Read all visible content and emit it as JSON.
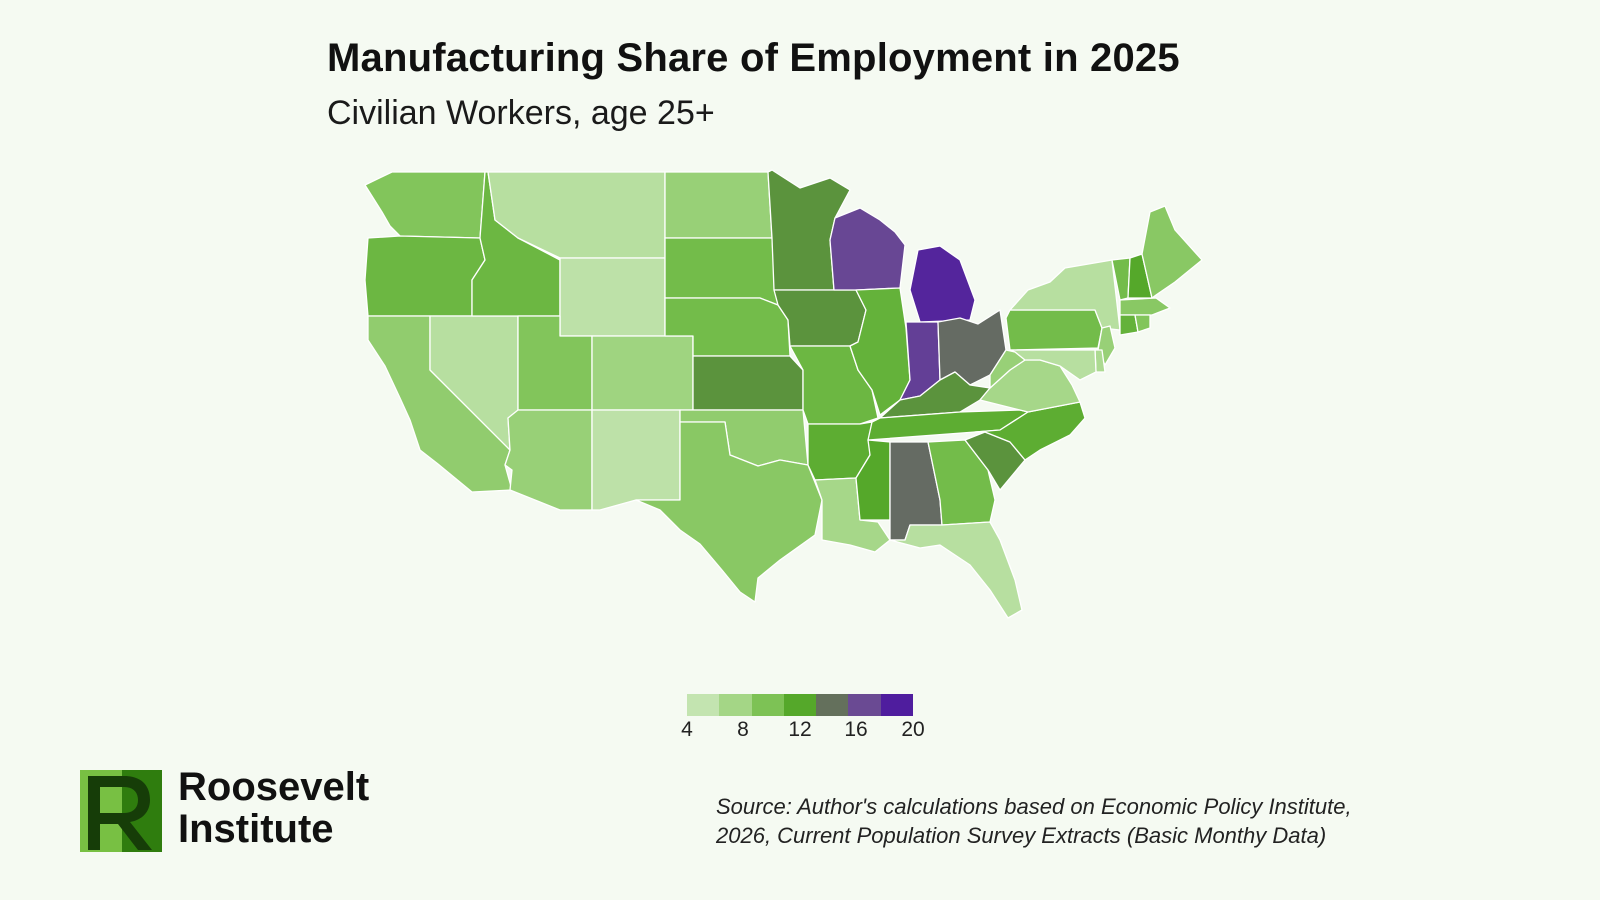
{
  "header": {
    "title": "Manufacturing Share of Employment in 2025",
    "subtitle": "Civilian Workers, age 25+"
  },
  "legend": {
    "ticks": [
      "4",
      "8",
      "12",
      "16",
      "20"
    ],
    "range": [
      4,
      20
    ],
    "colors": [
      "#c3e4b0",
      "#a4d686",
      "#7dc255",
      "#55a82a",
      "#64705c",
      "#6a4a93",
      "#4f1d9e"
    ]
  },
  "logo": {
    "name": "Roosevelt Institute",
    "line1": "Roosevelt",
    "line2": "Institute",
    "colors": {
      "dark": "#2f7d0e",
      "light": "#78c043",
      "mark": "#163d08"
    }
  },
  "source": {
    "line1": "Source: Author's calculations based on Economic Policy Institute,",
    "line2": "2026, Current Population Survey Extracts (Basic Monthy Data)"
  },
  "map_data": {
    "type": "choropleth",
    "region": "contiguous United States",
    "metric": "manufacturing share of employment (%)",
    "states": [
      {
        "id": "WA",
        "value": 9
      },
      {
        "id": "OR",
        "value": 10.5
      },
      {
        "id": "CA",
        "value": 8
      },
      {
        "id": "NV",
        "value": 5
      },
      {
        "id": "ID",
        "value": 10.5
      },
      {
        "id": "MT",
        "value": 5
      },
      {
        "id": "WY",
        "value": 4.5
      },
      {
        "id": "UT",
        "value": 9
      },
      {
        "id": "AZ",
        "value": 7.5
      },
      {
        "id": "CO",
        "value": 7
      },
      {
        "id": "NM",
        "value": 4.5
      },
      {
        "id": "ND",
        "value": 7.5
      },
      {
        "id": "SD",
        "value": 10
      },
      {
        "id": "NE",
        "value": 10
      },
      {
        "id": "KS",
        "value": 13
      },
      {
        "id": "OK",
        "value": 8
      },
      {
        "id": "TX",
        "value": 8.5
      },
      {
        "id": "MN",
        "value": 13
      },
      {
        "id": "IA",
        "value": 13
      },
      {
        "id": "MO",
        "value": 10.5
      },
      {
        "id": "AR",
        "value": 11.5
      },
      {
        "id": "LA",
        "value": 6.5
      },
      {
        "id": "WI",
        "value": 17.5
      },
      {
        "id": "IL",
        "value": 11
      },
      {
        "id": "MI",
        "value": 19.5
      },
      {
        "id": "IN",
        "value": 18
      },
      {
        "id": "OH",
        "value": 15
      },
      {
        "id": "KY",
        "value": 13
      },
      {
        "id": "TN",
        "value": 11.5
      },
      {
        "id": "MS",
        "value": 12
      },
      {
        "id": "AL",
        "value": 15
      },
      {
        "id": "GA",
        "value": 10
      },
      {
        "id": "FL",
        "value": 5
      },
      {
        "id": "SC",
        "value": 13
      },
      {
        "id": "NC",
        "value": 11.5
      },
      {
        "id": "VA",
        "value": 6.5
      },
      {
        "id": "WV",
        "value": 7.5
      },
      {
        "id": "PA",
        "value": 10
      },
      {
        "id": "NY",
        "value": 5
      },
      {
        "id": "VT",
        "value": 10
      },
      {
        "id": "NH",
        "value": 12
      },
      {
        "id": "ME",
        "value": 8.5
      },
      {
        "id": "MA",
        "value": 8.5
      },
      {
        "id": "CT",
        "value": 11
      },
      {
        "id": "RI",
        "value": 9
      },
      {
        "id": "NJ",
        "value": 7.5
      },
      {
        "id": "DE",
        "value": 6
      },
      {
        "id": "MD",
        "value": 5
      }
    ]
  }
}
